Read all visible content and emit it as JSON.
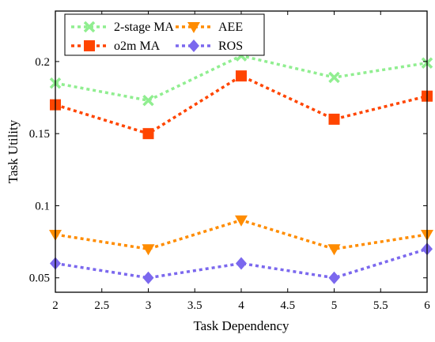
{
  "chart_data": {
    "type": "line",
    "xlabel": "Task Dependency",
    "ylabel": "Task Utility",
    "xlim": [
      2,
      6
    ],
    "ylim": [
      0.04,
      0.235
    ],
    "x_ticks": [
      "2",
      "2.5",
      "3",
      "3.5",
      "4",
      "4.5",
      "5",
      "5.5",
      "6"
    ],
    "x_tick_values": [
      2,
      2.5,
      3,
      3.5,
      4,
      4.5,
      5,
      5.5,
      6
    ],
    "y_ticks": [
      "0.05",
      "0.1",
      "0.15",
      "0.2"
    ],
    "y_tick_values": [
      0.05,
      0.1,
      0.15,
      0.2
    ],
    "grid": false,
    "legend_position": "top-left",
    "x": [
      2,
      3,
      4,
      5,
      6
    ],
    "series": [
      {
        "name": "2-stage MA",
        "values": [
          0.185,
          0.173,
          0.204,
          0.189,
          0.199
        ],
        "color": "#90EE90",
        "marker": "x"
      },
      {
        "name": "o2m MA",
        "values": [
          0.17,
          0.15,
          0.19,
          0.16,
          0.176
        ],
        "color": "#FF4500",
        "marker": "square"
      },
      {
        "name": "AEE",
        "values": [
          0.08,
          0.07,
          0.09,
          0.07,
          0.08
        ],
        "color": "#FF8C00",
        "marker": "triangle-down"
      },
      {
        "name": "ROS",
        "values": [
          0.06,
          0.05,
          0.06,
          0.05,
          0.07
        ],
        "color": "#7B68EE",
        "marker": "diamond"
      }
    ]
  }
}
